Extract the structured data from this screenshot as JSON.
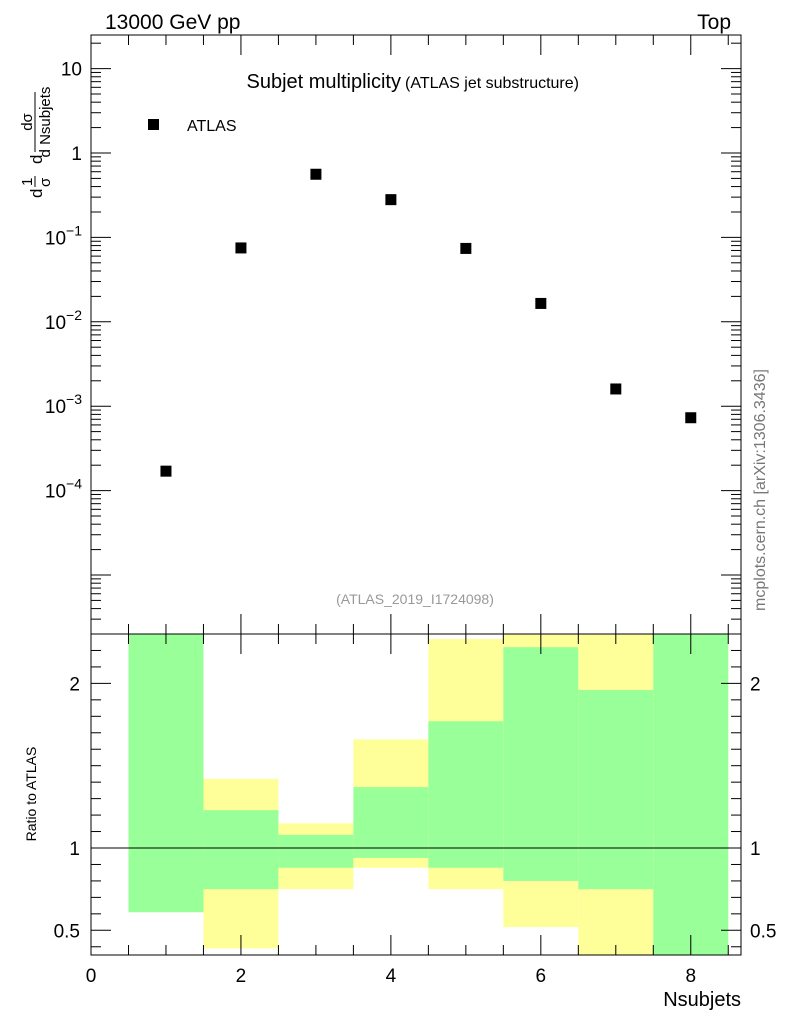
{
  "header": {
    "energy_label": "13000 GeV pp",
    "process_label": "Top",
    "side_label": "mcplots.cern.ch [arXiv:1306.3436]",
    "analysis_id": "(ATLAS_2019_I1724098)"
  },
  "chart_data": [
    {
      "type": "scatter",
      "title": "Subjet multiplicity",
      "subtitle": "(ATLAS jet substructure)",
      "ylabel_parts": {
        "lhs_num": "1",
        "lhs_den": "σ",
        "lhs_d": "d",
        "rhs_num": "dσ",
        "rhs_den": "d Nsubjets"
      },
      "yscale": "log",
      "ylim": [
        2e-06,
        25
      ],
      "y_ticks": [
        {
          "value": 10,
          "label": "10"
        },
        {
          "value": 1,
          "label": "1"
        },
        {
          "value": 0.1,
          "base": "10",
          "exp": "−1"
        },
        {
          "value": 0.01,
          "base": "10",
          "exp": "−2"
        },
        {
          "value": 0.001,
          "base": "10",
          "exp": "−3"
        },
        {
          "value": 0.0001,
          "base": "10",
          "exp": "−4"
        }
      ],
      "legend": {
        "position": "top-left",
        "entries": [
          {
            "name": "ATLAS",
            "marker": "square",
            "color": "#000000"
          }
        ]
      },
      "series": [
        {
          "name": "ATLAS",
          "x": [
            1,
            2,
            3,
            4,
            5,
            6,
            7,
            8
          ],
          "y": [
            0.00017,
            0.075,
            0.56,
            0.28,
            0.074,
            0.0165,
            0.0016,
            0.00073
          ]
        }
      ],
      "xlim": [
        0,
        8.67
      ]
    },
    {
      "type": "area",
      "ylabel": "Ratio to ATLAS",
      "xlabel": "Nsubjets",
      "xlim": [
        0,
        8.67
      ],
      "ylim": [
        0.35,
        2.3
      ],
      "x_ticks": [
        {
          "value": 0,
          "label": "0"
        },
        {
          "value": 2,
          "label": "2"
        },
        {
          "value": 4,
          "label": "4"
        },
        {
          "value": 6,
          "label": "6"
        },
        {
          "value": 8,
          "label": "8"
        }
      ],
      "y_ticks": [
        {
          "value": 0.5,
          "label": "0.5"
        },
        {
          "value": 1,
          "label": "1"
        },
        {
          "value": 2,
          "label": "2"
        }
      ],
      "reference_line": 1,
      "band_colors": {
        "inner": "#99ff99",
        "outer": "#ffff99"
      },
      "bands": [
        {
          "x0": 0.5,
          "x1": 1.5,
          "outer_lo": 0.61,
          "outer_hi": 2.3,
          "inner_lo": 0.61,
          "inner_hi": 2.3
        },
        {
          "x0": 1.5,
          "x1": 2.5,
          "outer_lo": 0.39,
          "outer_hi": 1.42,
          "inner_lo": 0.75,
          "inner_hi": 1.23
        },
        {
          "x0": 2.5,
          "x1": 3.5,
          "outer_lo": 0.75,
          "outer_hi": 1.15,
          "inner_lo": 0.88,
          "inner_hi": 1.08
        },
        {
          "x0": 3.5,
          "x1": 4.5,
          "outer_lo": 0.88,
          "outer_hi": 1.66,
          "inner_lo": 0.94,
          "inner_hi": 1.37
        },
        {
          "x0": 4.5,
          "x1": 5.5,
          "outer_lo": 0.75,
          "outer_hi": 2.27,
          "inner_lo": 0.88,
          "inner_hi": 1.77
        },
        {
          "x0": 5.5,
          "x1": 6.5,
          "outer_lo": 0.52,
          "outer_hi": 2.3,
          "inner_lo": 0.8,
          "inner_hi": 2.22
        },
        {
          "x0": 6.5,
          "x1": 7.5,
          "outer_lo": 0.35,
          "outer_hi": 2.3,
          "inner_lo": 0.75,
          "inner_hi": 1.96
        },
        {
          "x0": 7.5,
          "x1": 8.5,
          "outer_lo": 0.35,
          "outer_hi": 2.3,
          "inner_lo": 0.35,
          "inner_hi": 2.3
        }
      ]
    }
  ]
}
